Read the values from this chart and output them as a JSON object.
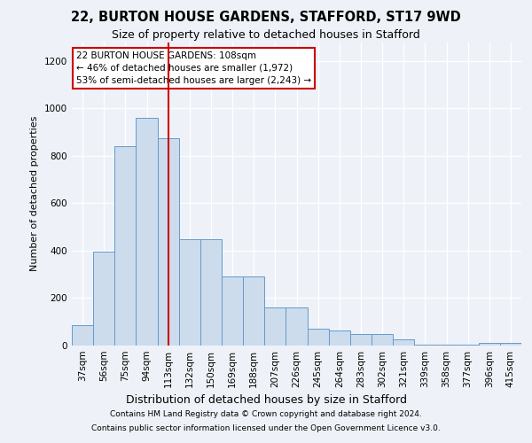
{
  "title1": "22, BURTON HOUSE GARDENS, STAFFORD, ST17 9WD",
  "title2": "Size of property relative to detached houses in Stafford",
  "xlabel": "Distribution of detached houses by size in Stafford",
  "ylabel": "Number of detached properties",
  "categories": [
    "37sqm",
    "56sqm",
    "75sqm",
    "94sqm",
    "113sqm",
    "132sqm",
    "150sqm",
    "169sqm",
    "188sqm",
    "207sqm",
    "226sqm",
    "245sqm",
    "264sqm",
    "283sqm",
    "302sqm",
    "321sqm",
    "339sqm",
    "358sqm",
    "377sqm",
    "396sqm",
    "415sqm"
  ],
  "values": [
    85,
    395,
    840,
    960,
    875,
    450,
    450,
    293,
    290,
    160,
    160,
    70,
    65,
    48,
    48,
    27,
    5,
    5,
    5,
    12,
    12
  ],
  "bar_color": "#ccdcec",
  "bar_edge_color": "#6699cc",
  "red_line_x": 4.0,
  "red_line_color": "#cc0000",
  "annotation_text": "22 BURTON HOUSE GARDENS: 108sqm\n← 46% of detached houses are smaller (1,972)\n53% of semi-detached houses are larger (2,243) →",
  "annotation_box_color": "#ffffff",
  "annotation_box_edge": "#cc0000",
  "ylim": [
    0,
    1280
  ],
  "yticks": [
    0,
    200,
    400,
    600,
    800,
    1000,
    1200
  ],
  "footer1": "Contains HM Land Registry data © Crown copyright and database right 2024.",
  "footer2": "Contains public sector information licensed under the Open Government Licence v3.0.",
  "background_color": "#eef2f8",
  "plot_background": "#eef2f8",
  "grid_color": "#ffffff",
  "title1_fontsize": 10.5,
  "title2_fontsize": 9,
  "ylabel_fontsize": 8,
  "xlabel_fontsize": 9,
  "tick_fontsize": 7.5,
  "footer_fontsize": 6.5,
  "annot_fontsize": 7.5
}
